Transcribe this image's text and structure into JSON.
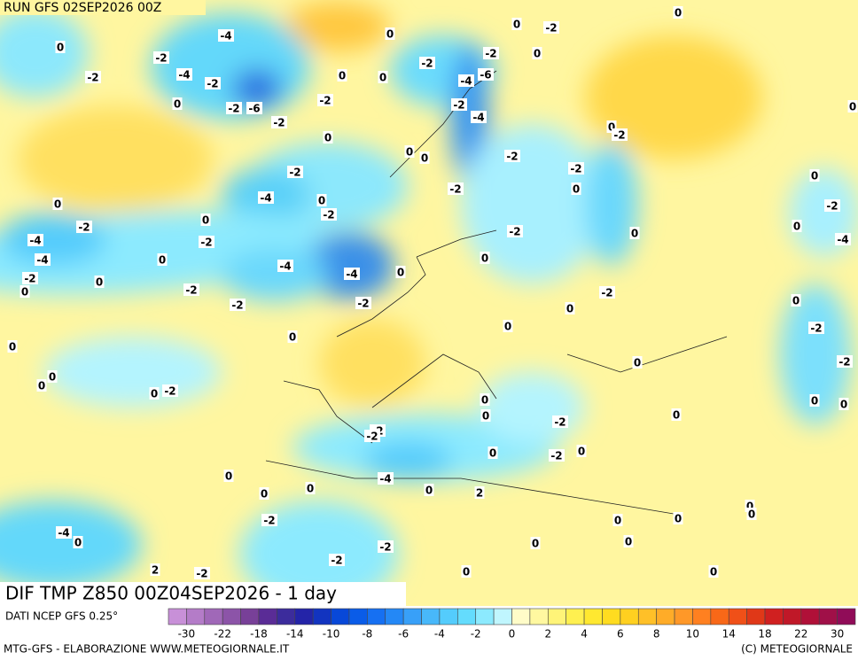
{
  "header": {
    "run": "RUN GFS 02SEP2026 00Z"
  },
  "map": {
    "title": "DIF TMP Z850 00Z04SEP2026 - 1 day",
    "contour_labels": [
      0,
      -2,
      -2,
      -4,
      -4,
      -2,
      0,
      -2,
      -6,
      -2,
      -2,
      0,
      0,
      0,
      -2,
      -4,
      -6,
      -2,
      -4,
      -2,
      0,
      0,
      -2,
      0,
      0,
      0,
      0,
      -2,
      -4,
      0,
      -2,
      0,
      0,
      -2,
      -4,
      -4,
      -2,
      0,
      -4,
      -4,
      -2,
      0,
      0,
      -2,
      0,
      -2,
      -2,
      0,
      0,
      0,
      0,
      0,
      -2,
      -2,
      -2,
      -2,
      0,
      0,
      -2,
      -2,
      0,
      0,
      -2,
      0,
      0,
      0,
      0,
      -2,
      0,
      -4,
      0,
      0,
      -2,
      -2,
      0,
      0,
      0,
      0,
      0,
      -2,
      -2,
      0,
      -2,
      -2,
      0,
      0,
      0,
      0,
      -4,
      0,
      2,
      -2,
      -4,
      0,
      2,
      -2,
      -2,
      -2,
      0,
      0,
      0,
      0,
      0,
      0,
      0,
      0
    ]
  },
  "legend": {
    "source": "DATI NCEP GFS 0.25°",
    "colors": [
      "#c890d8",
      "#b47cc8",
      "#a068b8",
      "#8c54a8",
      "#784098",
      "#5a2c96",
      "#3c2c9c",
      "#2424a8",
      "#1234c0",
      "#0848d8",
      "#0a5ce8",
      "#1670f2",
      "#2488f6",
      "#38a0f8",
      "#48b8fa",
      "#54ccfc",
      "#64dcfd",
      "#8ceafe",
      "#c0f6fe",
      "#fffcc8",
      "#fff8a0",
      "#fff478",
      "#fff050",
      "#ffe830",
      "#ffdc20",
      "#ffd020",
      "#ffc028",
      "#ffac28",
      "#ff9828",
      "#ff8020",
      "#f86818",
      "#f05018",
      "#e03818",
      "#d02020",
      "#c01828",
      "#b01038",
      "#a01048",
      "#900c58"
    ],
    "ticks": [
      -30,
      -22,
      -18,
      -14,
      -10,
      -8,
      -6,
      -4,
      -2,
      0,
      2,
      4,
      6,
      8,
      10,
      14,
      18,
      22,
      30
    ]
  },
  "footer": {
    "credit": "MTG-GFS - ELABORAZIONE WWW.METEOGIORNALE.IT",
    "copyright": "(C) METEOGIORNALE"
  }
}
